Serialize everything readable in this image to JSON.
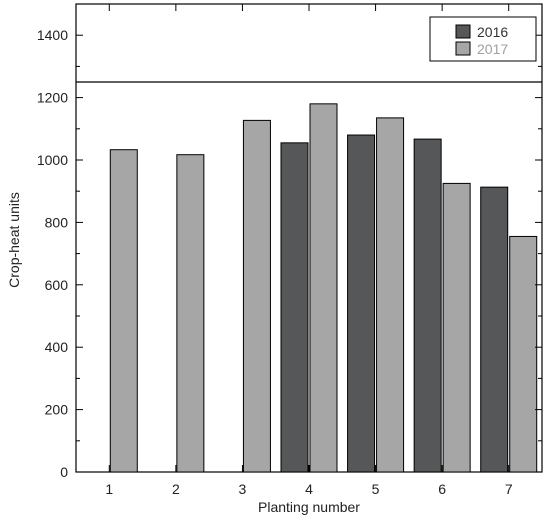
{
  "chart_data": {
    "type": "bar",
    "xlabel": "Planting number",
    "ylabel": "Crop-heat units",
    "categories": [
      "1",
      "2",
      "3",
      "4",
      "5",
      "6",
      "7"
    ],
    "ylim": [
      0,
      1500
    ],
    "yticks": [
      0,
      200,
      400,
      600,
      800,
      1000,
      1200,
      1400
    ],
    "reference_line": 1250,
    "grid": false,
    "legend_position": "top-right",
    "series": [
      {
        "name": "2016",
        "color": "#555759",
        "legend_text_color": "#333333",
        "values": [
          null,
          null,
          null,
          1055,
          1080,
          1067,
          913
        ]
      },
      {
        "name": "2017",
        "color": "#a6a6a6",
        "legend_text_color": "#a0a0a0",
        "values": [
          1033,
          1017,
          1127,
          1180,
          1135,
          925,
          755
        ]
      }
    ]
  }
}
